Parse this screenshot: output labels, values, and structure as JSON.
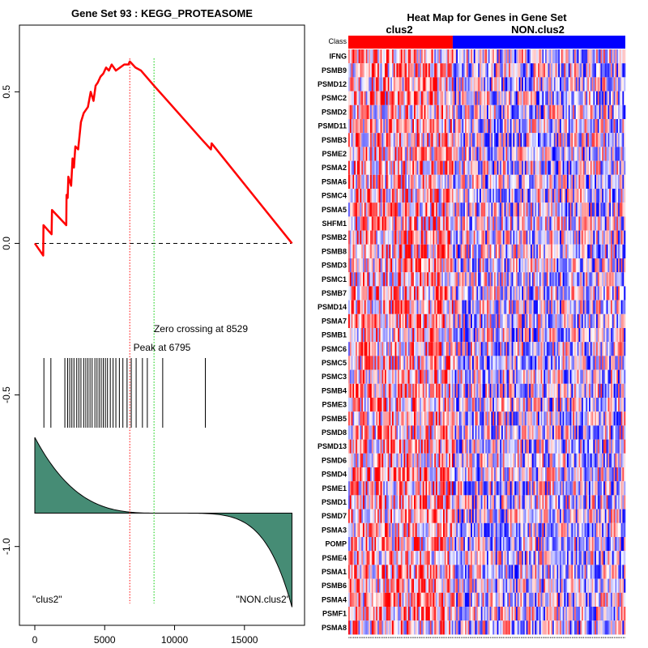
{
  "chart_data": [
    {
      "type": "line",
      "title": "Gene Set  93 : KEGG_PROTEASOME",
      "xlim": [
        -1100,
        19300
      ],
      "ylim": [
        -1.26,
        0.72
      ],
      "x_ticks": [
        0,
        5000,
        10000,
        15000
      ],
      "x_tick_labels": [
        "0",
        "5000",
        "10000",
        "15000"
      ],
      "y_ticks": [
        0.5,
        0.0,
        -0.5,
        -1.0
      ],
      "y_tick_labels": [
        "0.5",
        "0.0",
        "-0.5",
        "-1.0"
      ],
      "running_enrichment_score": {
        "color": "#ff0000",
        "x": [
          0,
          150,
          600,
          620,
          1200,
          1230,
          2250,
          2270,
          2350,
          2400,
          2600,
          2700,
          2800,
          2900,
          3100,
          3300,
          3500,
          3800,
          4000,
          4200,
          4350,
          4500,
          4700,
          4900,
          5100,
          5300,
          5500,
          5800,
          6100,
          6400,
          6700,
          6795,
          7200,
          7600,
          8529,
          9500,
          12000,
          12600,
          12650,
          18400
        ],
        "y": [
          0,
          -0.01,
          -0.04,
          0.06,
          0.03,
          0.11,
          0.06,
          0.16,
          0.15,
          0.22,
          0.19,
          0.28,
          0.25,
          0.32,
          0.31,
          0.4,
          0.43,
          0.45,
          0.5,
          0.47,
          0.52,
          0.53,
          0.55,
          0.56,
          0.58,
          0.57,
          0.59,
          0.57,
          0.58,
          0.59,
          0.59,
          0.6,
          0.58,
          0.57,
          0.52,
          0.47,
          0.34,
          0.31,
          0.33,
          0.0
        ]
      },
      "zero_line_y": 0.0,
      "peak": {
        "x": 6795,
        "label": "Peak at 6795",
        "color": "#ff0000"
      },
      "zero_crossing": {
        "x": 8529,
        "label": "Zero crossing at 8529",
        "color": "#00cc00"
      },
      "hit_positions": [
        650,
        1150,
        2150,
        2350,
        2500,
        2650,
        2800,
        3000,
        3150,
        3300,
        3500,
        3650,
        3800,
        3950,
        4100,
        4300,
        4450,
        4600,
        4750,
        4900,
        5050,
        5200,
        5400,
        5600,
        5800,
        6050,
        6300,
        6600,
        6900,
        7250,
        7700,
        8050,
        9150,
        12200
      ],
      "ranked_metric": {
        "color": "#468c75",
        "top_value": -0.64,
        "baseline": -0.89,
        "bottom_value": -1.2
      },
      "class_labels": {
        "left": "\"clus2\"",
        "right": "\"NON.clus2\""
      }
    },
    {
      "type": "heatmap",
      "title": "Heat Map for Genes in Gene Set",
      "class_row_label": "Class",
      "classes": [
        {
          "name": "clus2",
          "color": "#ff0000",
          "fraction": 0.377
        },
        {
          "name": "NON.clus2",
          "color": "#0000ff",
          "fraction": 0.623
        }
      ],
      "genes": [
        "IFNG",
        "PSMB9",
        "PSMD12",
        "PSMC2",
        "PSMD2",
        "PSMD11",
        "PSMB3",
        "PSME2",
        "PSMA2",
        "PSMA6",
        "PSMC4",
        "PSMA5",
        "SHFM1",
        "PSMB2",
        "PSMB8",
        "PSMD3",
        "PSMC1",
        "PSMB7",
        "PSMD14",
        "PSMA7",
        "PSMB1",
        "PSMC6",
        "PSMC5",
        "PSMC3",
        "PSMB4",
        "PSME3",
        "PSMB5",
        "PSMD8",
        "PSMD13",
        "PSMD6",
        "PSMD4",
        "PSME1",
        "PSMD1",
        "PSMD7",
        "PSMA3",
        "POMP",
        "PSME4",
        "PSMA1",
        "PSMB6",
        "PSMA4",
        "PSMF1",
        "PSMA8"
      ],
      "n_samples": 190,
      "high_color": "#ff0000",
      "low_color": "#0000ff"
    }
  ]
}
